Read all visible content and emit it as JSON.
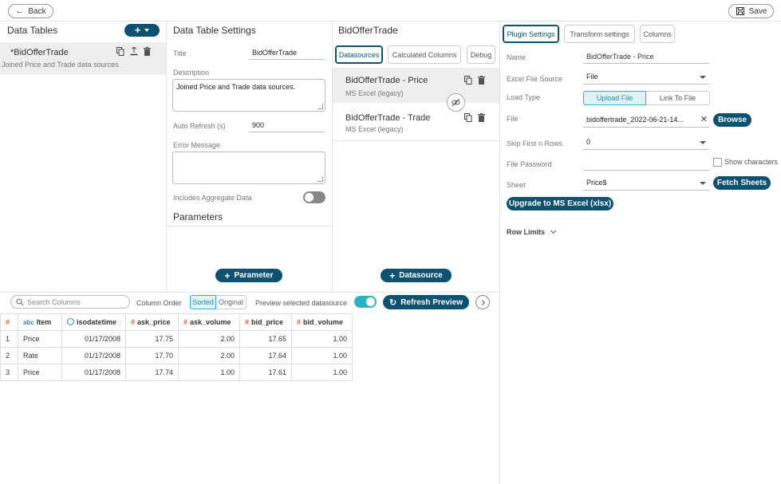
{
  "topbar": {
    "back_label": "Back",
    "save_label": "Save"
  },
  "data_tables": {
    "title": "Data Tables",
    "add_label": "+",
    "item": {
      "name": "*BidOfferTrade",
      "description": "Joined Price and Trade data sources."
    }
  },
  "settings": {
    "heading": "Data Table Settings",
    "title_label": "Title",
    "title_value": "BidOfferTrade",
    "description_label": "Description",
    "description_value": "Joined Price and Trade data sources.",
    "auto_refresh_label": "Auto Refresh (s)",
    "auto_refresh_value": "900",
    "error_label": "Error Message",
    "error_value": "",
    "aggregate_label": "Includes Aggregate Data",
    "parameters_heading": "Parameters",
    "parameter_button": "Parameter"
  },
  "datasources_panel": {
    "heading": "BidOfferTrade",
    "tabs": [
      "Datasources",
      "Calculated Columns",
      "Debug"
    ],
    "items": [
      {
        "name": "BidOfferTrade - Price",
        "type": "MS Excel (legacy)"
      },
      {
        "name": "BidOfferTrade - Trade",
        "type": "MS Excel (legacy)"
      }
    ],
    "add_button": "Datasource"
  },
  "plugin": {
    "tabs": [
      "Plugin Settings",
      "Transform settings",
      "Columns"
    ],
    "name_label": "Name",
    "name_value": "BidOfferTrade - Price",
    "excel_source_label": "Excel File Source",
    "excel_source_value": "File",
    "load_type_label": "Load Type",
    "load_type_options": [
      "Upload File",
      "Link To File"
    ],
    "file_label": "File",
    "file_value": "bidoffertrade_2022-06-21-14...",
    "browse_label": "Browse",
    "skip_label": "Skip First n Rows",
    "skip_value": "0",
    "password_label": "File Password",
    "password_value": "",
    "show_chars_label": "Show characters",
    "sheet_label": "Sheet",
    "sheet_value": "Price$",
    "fetch_label": "Fetch Sheets",
    "upgrade_label": "Upgrade to MS Excel (xlsx)",
    "row_limits_label": "Row Limits"
  },
  "preview": {
    "search_placeholder": "Search Columns",
    "column_order_label": "Column Order",
    "order_options": [
      "Sorted",
      "Original"
    ],
    "preview_label": "Preview selected datasource",
    "refresh_label": "Refresh Preview",
    "columns": [
      {
        "type": "#",
        "name": ""
      },
      {
        "type": "abc",
        "name": "Item"
      },
      {
        "type": "clock",
        "name": "isodatetime"
      },
      {
        "type": "#",
        "name": "ask_price"
      },
      {
        "type": "#",
        "name": "ask_volume"
      },
      {
        "type": "#",
        "name": "bid_price"
      },
      {
        "type": "#",
        "name": "bid_volume"
      }
    ],
    "rows": [
      [
        "1",
        "Price",
        "01/17/2008",
        "17.75",
        "2.00",
        "17.65",
        "1.00"
      ],
      [
        "2",
        "Rate",
        "01/17/2008",
        "17.70",
        "2.00",
        "17.64",
        "1.00"
      ],
      [
        "3",
        "Price",
        "01/17/2008",
        "17.74",
        "1.00",
        "17.61",
        "1.00"
      ]
    ]
  },
  "colors": {
    "brand": "#0d5271",
    "toggle_on": "#2bb3c0",
    "hash": "#e4572e"
  }
}
